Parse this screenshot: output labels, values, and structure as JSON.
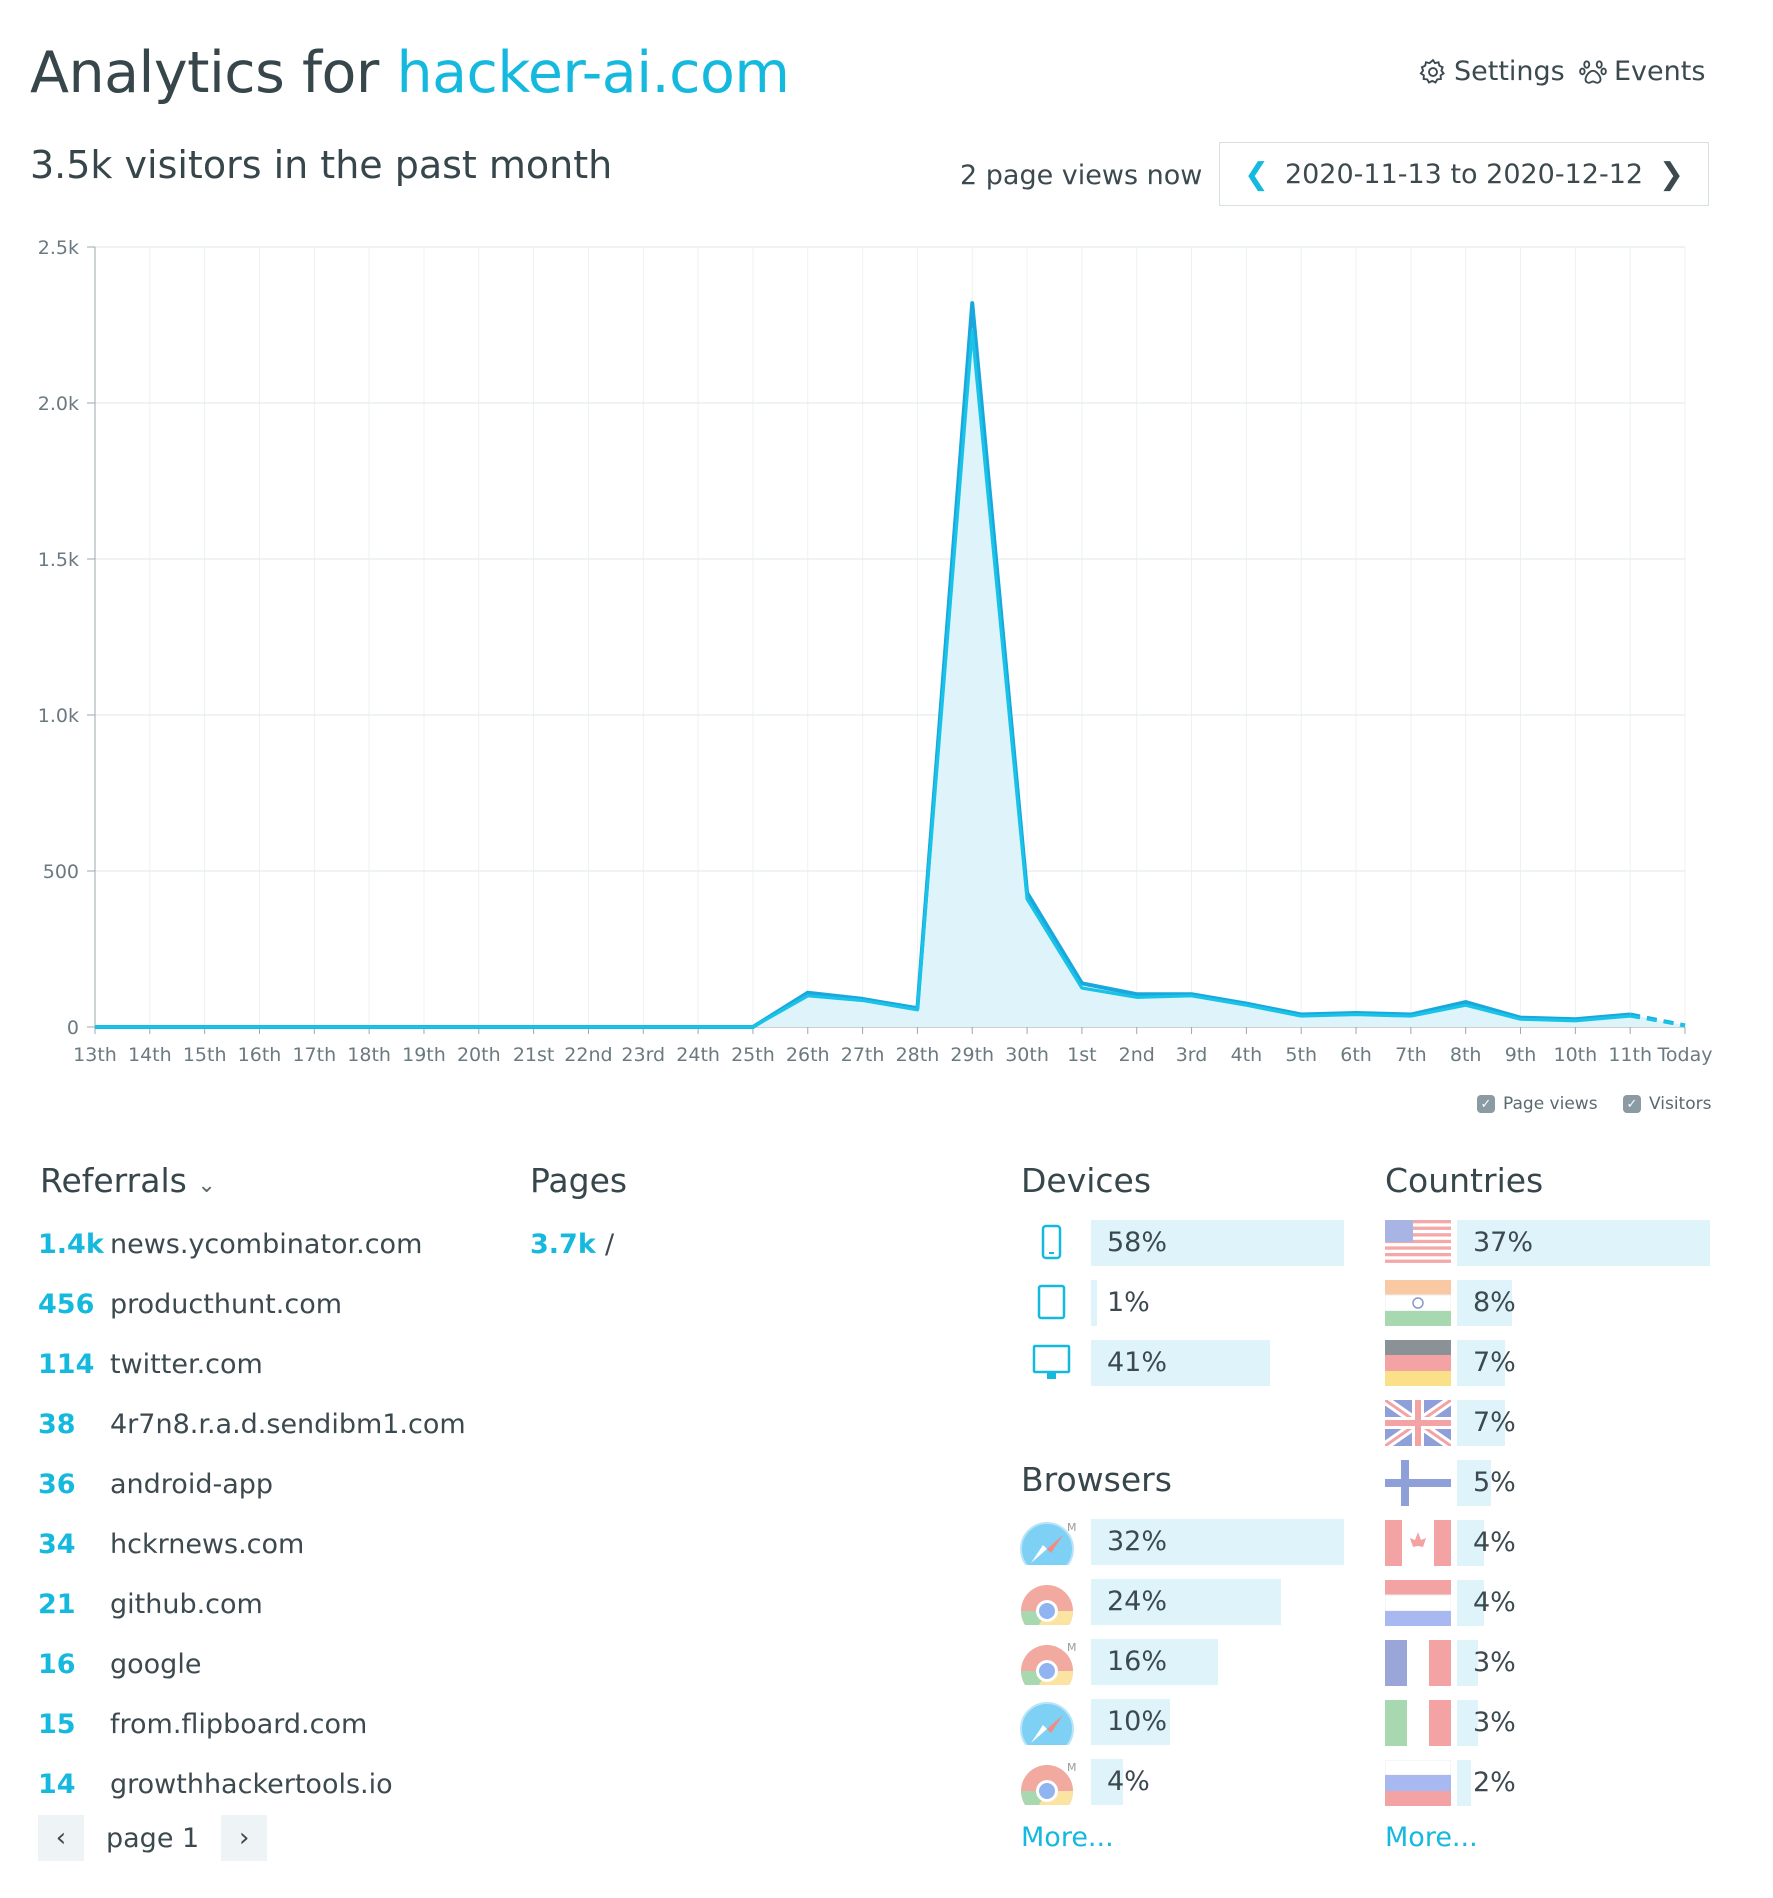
{
  "header": {
    "title_prefix": "Analytics for",
    "domain": "hacker-ai.com",
    "subtitle": "3.5k visitors in the past month",
    "settings_label": "Settings",
    "events_label": "Events",
    "page_views_now": "2 page views now",
    "date_range": "2020-11-13 to 2020-12-12"
  },
  "chart_data": {
    "type": "area",
    "x": [
      "13th",
      "14th",
      "15th",
      "16th",
      "17th",
      "18th",
      "19th",
      "20th",
      "21st",
      "22nd",
      "23rd",
      "24th",
      "25th",
      "26th",
      "27th",
      "28th",
      "29th",
      "30th",
      "1st",
      "2nd",
      "3rd",
      "4th",
      "5th",
      "6th",
      "7th",
      "8th",
      "9th",
      "10th",
      "11th",
      "Today"
    ],
    "series": [
      {
        "name": "Page views",
        "values": [
          0,
          0,
          0,
          0,
          0,
          0,
          0,
          0,
          0,
          0,
          0,
          0,
          0,
          110,
          90,
          60,
          2320,
          430,
          140,
          105,
          105,
          75,
          40,
          45,
          40,
          80,
          30,
          25,
          40,
          5
        ]
      },
      {
        "name": "Visitors",
        "values": [
          0,
          0,
          0,
          0,
          0,
          0,
          0,
          0,
          0,
          0,
          0,
          0,
          0,
          100,
          85,
          55,
          2230,
          410,
          125,
          95,
          100,
          70,
          35,
          40,
          35,
          70,
          25,
          20,
          35,
          5
        ]
      }
    ],
    "yticks": [
      "0",
      "500",
      "1.0k",
      "1.5k",
      "2.0k",
      "2.5k"
    ],
    "ylim": [
      0,
      2500
    ],
    "grid": true,
    "legend": "bottom-right",
    "last_point_dashed": true
  },
  "legend": {
    "page_views": "Page views",
    "visitors": "Visitors"
  },
  "referrals": {
    "title": "Referrals",
    "items": [
      {
        "count": "1.4k",
        "name": "news.ycombinator.com"
      },
      {
        "count": "456",
        "name": "producthunt.com"
      },
      {
        "count": "114",
        "name": "twitter.com"
      },
      {
        "count": "38",
        "name": "4r7n8.r.a.d.sendibm1.com"
      },
      {
        "count": "36",
        "name": "android-app"
      },
      {
        "count": "34",
        "name": "hckrnews.com"
      },
      {
        "count": "21",
        "name": "github.com"
      },
      {
        "count": "16",
        "name": "google"
      },
      {
        "count": "15",
        "name": "from.flipboard.com"
      },
      {
        "count": "14",
        "name": "growthhackertools.io"
      }
    ],
    "page_label": "page 1"
  },
  "pages": {
    "title": "Pages",
    "items": [
      {
        "count": "3.7k",
        "path": "/"
      }
    ]
  },
  "devices": {
    "title": "Devices",
    "items": [
      {
        "icon": "mobile-icon",
        "label": "58%",
        "share": 0.58
      },
      {
        "icon": "tablet-icon",
        "label": "1%",
        "share": 0.01
      },
      {
        "icon": "desktop-icon",
        "label": "41%",
        "share": 0.41
      }
    ]
  },
  "browsers": {
    "title": "Browsers",
    "items": [
      {
        "icon": "mobile-safari-icon",
        "label": "32%",
        "share": 0.32
      },
      {
        "icon": "chrome-icon",
        "label": "24%",
        "share": 0.24
      },
      {
        "icon": "mobile-chrome-icon",
        "label": "16%",
        "share": 0.16
      },
      {
        "icon": "safari-icon",
        "label": "10%",
        "share": 0.1
      },
      {
        "icon": "mobile-chrome-icon",
        "label": "4%",
        "share": 0.04
      }
    ],
    "more": "More..."
  },
  "countries": {
    "title": "Countries",
    "items": [
      {
        "icon": "flag-us-icon",
        "label": "37%",
        "share": 0.37
      },
      {
        "icon": "flag-in-icon",
        "label": "8%",
        "share": 0.08
      },
      {
        "icon": "flag-de-icon",
        "label": "7%",
        "share": 0.07
      },
      {
        "icon": "flag-gb-icon",
        "label": "7%",
        "share": 0.07
      },
      {
        "icon": "flag-fi-icon",
        "label": "5%",
        "share": 0.05
      },
      {
        "icon": "flag-ca-icon",
        "label": "4%",
        "share": 0.04
      },
      {
        "icon": "flag-nl-icon",
        "label": "4%",
        "share": 0.04
      },
      {
        "icon": "flag-fr-icon",
        "label": "3%",
        "share": 0.03
      },
      {
        "icon": "flag-it-icon",
        "label": "3%",
        "share": 0.03
      },
      {
        "icon": "flag-ru-icon",
        "label": "2%",
        "share": 0.02
      }
    ],
    "more": "More..."
  },
  "colors": {
    "accent": "#15b9de",
    "area_fill": "#dff4fa",
    "bar_fill": "#dff4fa",
    "text": "#3c4a4f",
    "grid": "#e9eef0"
  }
}
